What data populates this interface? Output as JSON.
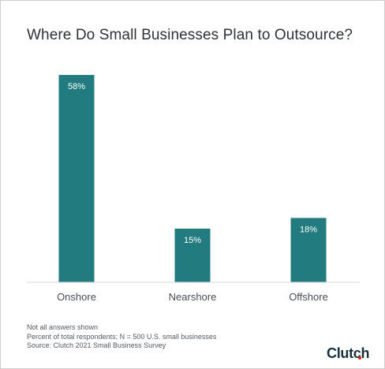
{
  "chart_data": {
    "type": "bar",
    "title": "Where Do Small Businesses Plan to Outsource?",
    "categories": [
      "Onshore",
      "Nearshore",
      "Offshore"
    ],
    "values": [
      58,
      15,
      18
    ],
    "data_labels": [
      "58%",
      "15%",
      "18%"
    ],
    "ylim": [
      0,
      60
    ],
    "grid": false,
    "legend": "none",
    "bar_color": "#227b7f",
    "label_color": "#ffffff"
  },
  "notes": [
    "Not all answers shown",
    "Percent of total respondents; N = 500 U.S. small businesses",
    "Source: Clutch 2021 Small Business Survey"
  ],
  "brand": {
    "logo_text": "Clutch",
    "accent_color": "#e62415"
  }
}
